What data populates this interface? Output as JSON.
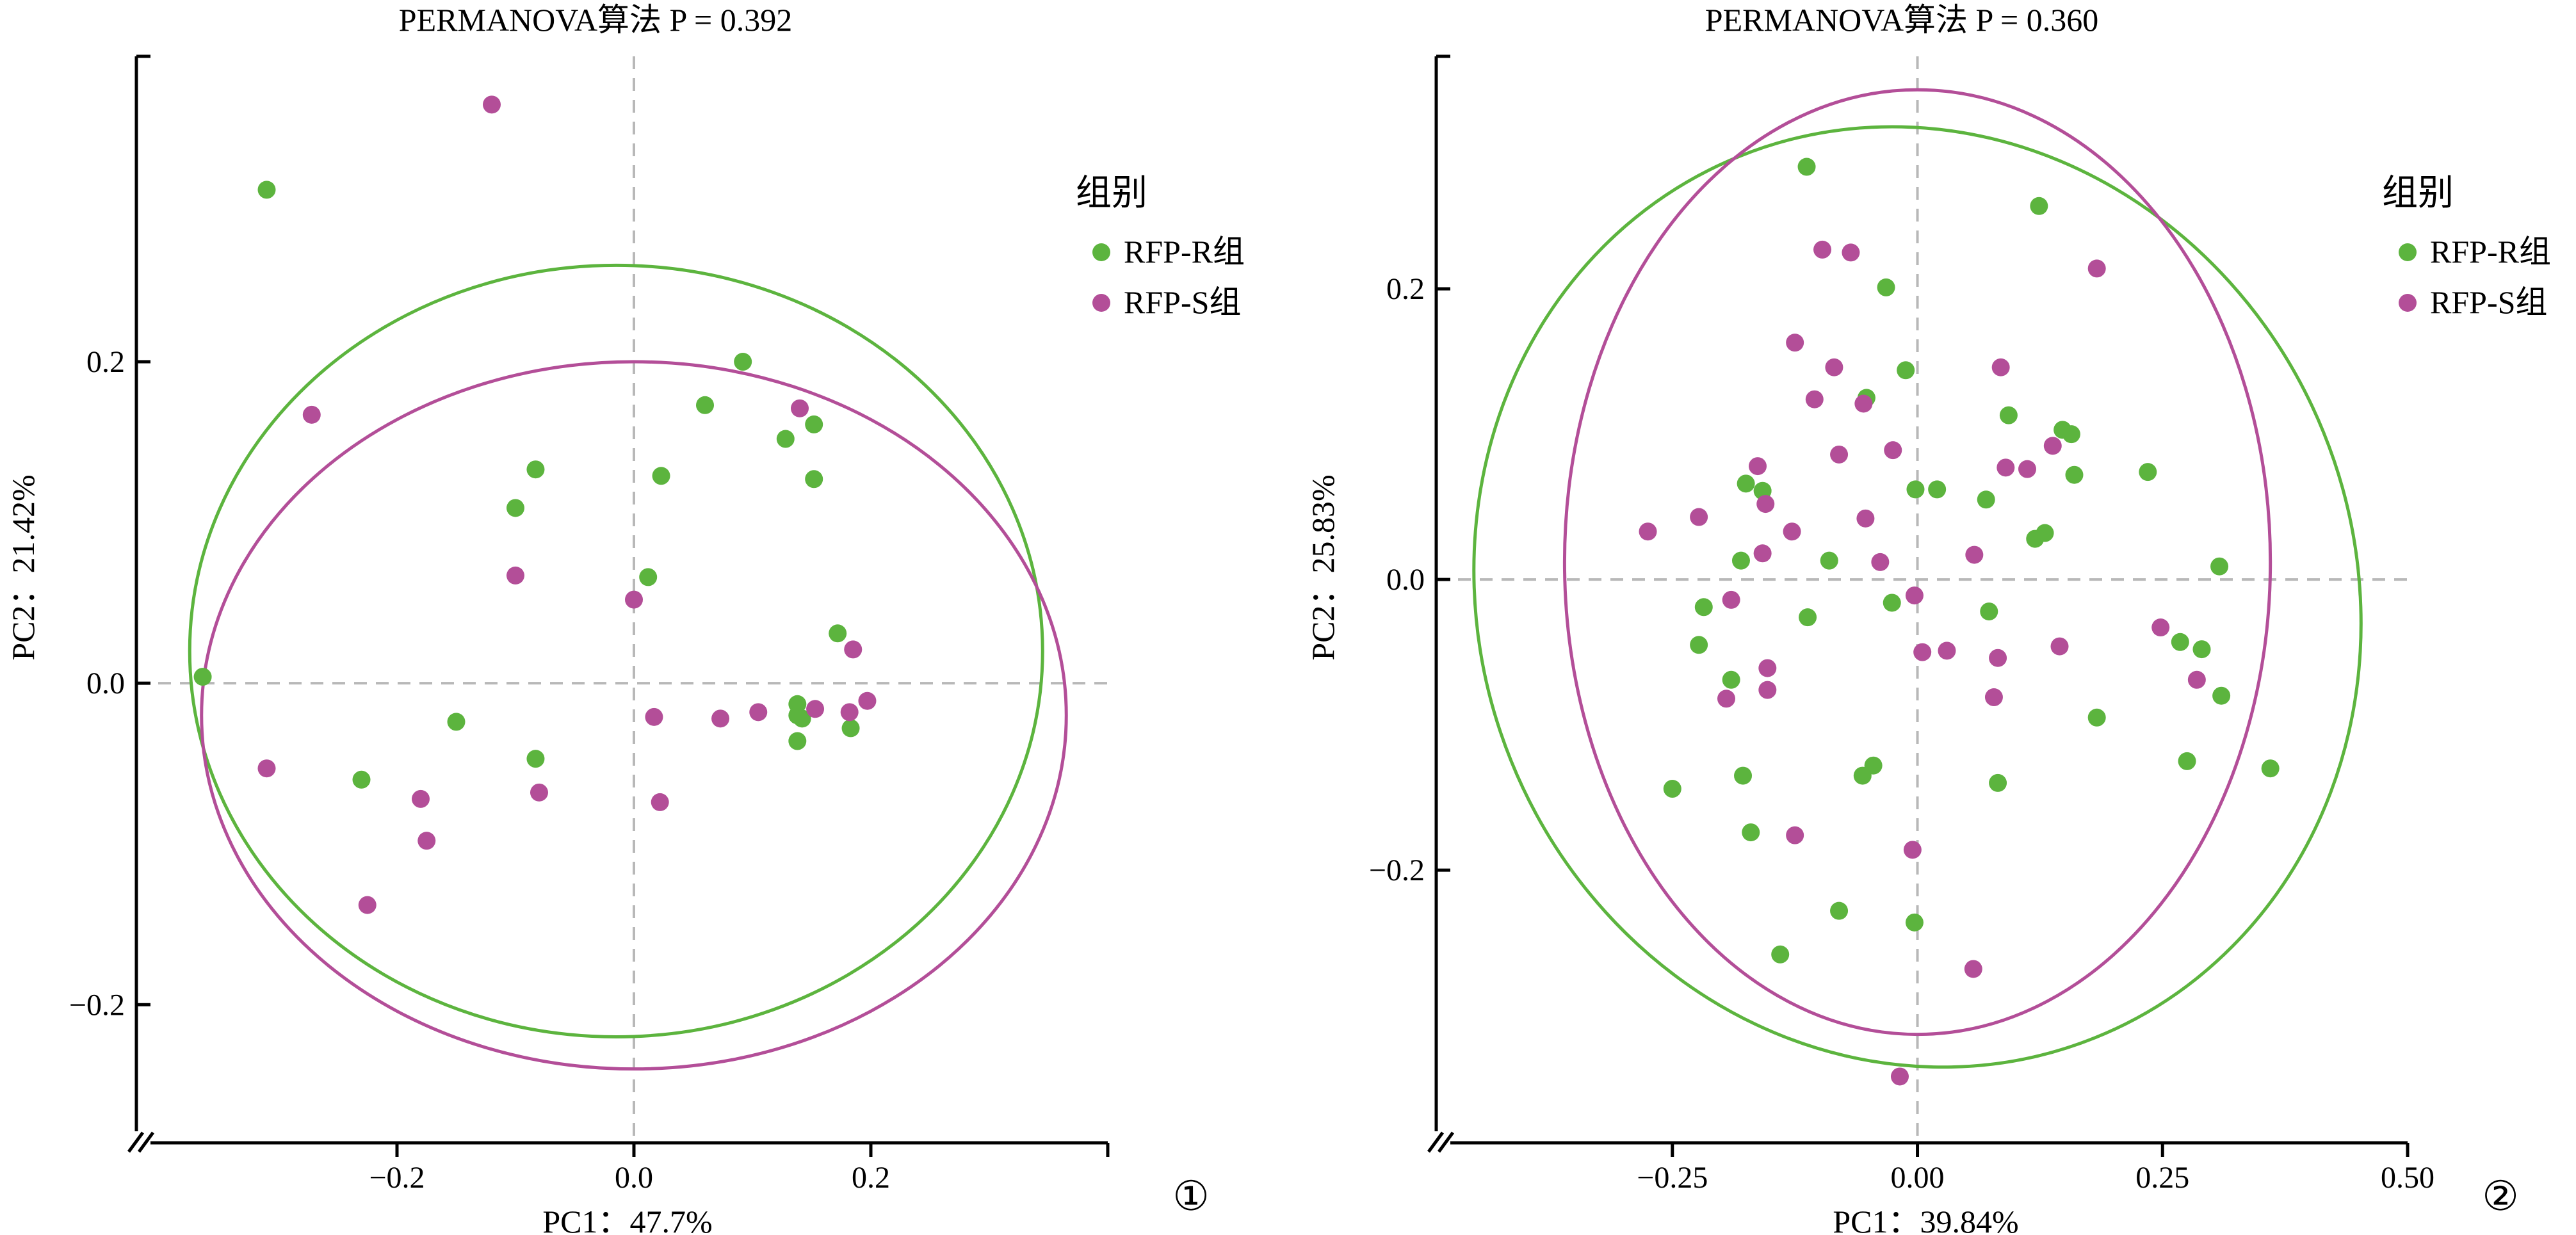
{
  "colors": {
    "group_r": "#5cb43e",
    "group_s": "#b34e98",
    "axis": "#000000",
    "refline": "#b8b8b8"
  },
  "chart_data": [
    {
      "type": "scatter",
      "title": "PERMANOVA算法  P = 0.392",
      "xlabel": "PC1：47.7%",
      "ylabel": "PC2：21.42%",
      "panel_label": "①",
      "xlim": [
        -0.4,
        0.4
      ],
      "ylim": [
        -0.27,
        0.39
      ],
      "xticks": [
        -0.2,
        0.0,
        0.2
      ],
      "xtick_labels": [
        "−0.2",
        "0.0",
        "0.2"
      ],
      "yticks": [
        -0.2,
        0.0,
        0.2
      ],
      "ytick_labels": [
        "−0.2",
        "0.0",
        "0.2"
      ],
      "reference_lines": {
        "x": 0,
        "y": 0
      },
      "legend": {
        "title": "组别",
        "placement": "right"
      },
      "series": [
        {
          "name": "RFP-R组",
          "color": "#5cb43e",
          "points": [
            [
              -0.364,
              0.004
            ],
            [
              -0.31,
              0.307
            ],
            [
              -0.23,
              -0.06
            ],
            [
              -0.15,
              -0.024
            ],
            [
              -0.1,
              0.109
            ],
            [
              -0.083,
              0.133
            ],
            [
              -0.083,
              -0.047
            ],
            [
              0.012,
              0.066
            ],
            [
              0.023,
              0.129
            ],
            [
              0.06,
              0.173
            ],
            [
              0.092,
              0.2
            ],
            [
              0.128,
              0.152
            ],
            [
              0.152,
              0.161
            ],
            [
              0.152,
              0.127
            ],
            [
              0.138,
              -0.013
            ],
            [
              0.138,
              -0.02
            ],
            [
              0.142,
              -0.022
            ],
            [
              0.138,
              -0.036
            ],
            [
              0.172,
              0.031
            ],
            [
              0.183,
              -0.028
            ]
          ]
        },
        {
          "name": "RFP-S组",
          "color": "#b34e98",
          "points": [
            [
              -0.12,
              0.36
            ],
            [
              -0.272,
              0.167
            ],
            [
              -0.31,
              -0.053
            ],
            [
              -0.18,
              -0.072
            ],
            [
              -0.175,
              -0.098
            ],
            [
              -0.225,
              -0.138
            ],
            [
              -0.1,
              0.067
            ],
            [
              -0.08,
              -0.068
            ],
            [
              0.0,
              0.052
            ],
            [
              0.017,
              -0.021
            ],
            [
              0.022,
              -0.074
            ],
            [
              0.073,
              -0.022
            ],
            [
              0.105,
              -0.018
            ],
            [
              0.14,
              0.171
            ],
            [
              0.153,
              -0.016
            ],
            [
              0.185,
              0.021
            ],
            [
              0.182,
              -0.018
            ],
            [
              0.197,
              -0.011
            ]
          ]
        }
      ],
      "ellipses": [
        {
          "series": "RFP-R组",
          "cx": -0.015,
          "cy": 0.02,
          "rx": 0.36,
          "ry": 0.24,
          "angle_deg": 0
        },
        {
          "series": "RFP-S组",
          "cx": 0.0,
          "cy": -0.02,
          "rx": 0.365,
          "ry": 0.22,
          "angle_deg": 0
        }
      ]
    },
    {
      "type": "scatter",
      "title": "PERMANOVA算法  P = 0.360",
      "xlabel": "PC1：39.84%",
      "ylabel": "PC2：25.83%",
      "panel_label": "②",
      "xlim": [
        -0.47,
        0.5
      ],
      "ylim": [
        -0.37,
        0.36
      ],
      "xticks": [
        -0.25,
        0.0,
        0.25,
        0.5
      ],
      "xtick_labels": [
        "−0.25",
        "0.00",
        "0.25",
        "0.50"
      ],
      "yticks": [
        -0.2,
        0.0,
        0.2
      ],
      "ytick_labels": [
        "−0.2",
        "0.0",
        "0.2"
      ],
      "reference_lines": {
        "x": 0,
        "y": 0
      },
      "legend": {
        "title": "组别",
        "placement": "right"
      },
      "series": [
        {
          "name": "RFP-R组",
          "color": "#5cb43e",
          "points": [
            [
              -0.113,
              0.284
            ],
            [
              -0.032,
              0.201
            ],
            [
              -0.012,
              0.144
            ],
            [
              -0.052,
              0.125
            ],
            [
              0.124,
              0.257
            ],
            [
              -0.175,
              0.066
            ],
            [
              -0.158,
              0.061
            ],
            [
              -0.002,
              0.062
            ],
            [
              0.02,
              0.062
            ],
            [
              0.07,
              0.055
            ],
            [
              0.093,
              0.113
            ],
            [
              0.148,
              0.103
            ],
            [
              0.157,
              0.1
            ],
            [
              0.16,
              0.072
            ],
            [
              0.235,
              0.074
            ],
            [
              0.12,
              0.028
            ],
            [
              0.13,
              0.032
            ],
            [
              -0.18,
              0.013
            ],
            [
              -0.09,
              0.013
            ],
            [
              0.308,
              0.009
            ],
            [
              -0.218,
              -0.019
            ],
            [
              -0.112,
              -0.026
            ],
            [
              -0.026,
              -0.016
            ],
            [
              0.073,
              -0.022
            ],
            [
              -0.223,
              -0.045
            ],
            [
              -0.19,
              -0.069
            ],
            [
              0.268,
              -0.043
            ],
            [
              0.29,
              -0.048
            ],
            [
              0.31,
              -0.08
            ],
            [
              0.183,
              -0.095
            ],
            [
              -0.178,
              -0.135
            ],
            [
              -0.045,
              -0.128
            ],
            [
              -0.056,
              -0.135
            ],
            [
              0.082,
              -0.14
            ],
            [
              0.275,
              -0.125
            ],
            [
              0.36,
              -0.13
            ],
            [
              -0.25,
              -0.144
            ],
            [
              -0.17,
              -0.174
            ],
            [
              -0.08,
              -0.228
            ],
            [
              -0.003,
              -0.236
            ],
            [
              -0.14,
              -0.258
            ]
          ]
        },
        {
          "name": "RFP-S组",
          "color": "#b34e98",
          "points": [
            [
              -0.097,
              0.227
            ],
            [
              -0.068,
              0.225
            ],
            [
              0.183,
              0.214
            ],
            [
              -0.125,
              0.163
            ],
            [
              -0.085,
              0.146
            ],
            [
              0.085,
              0.146
            ],
            [
              -0.105,
              0.124
            ],
            [
              -0.055,
              0.121
            ],
            [
              -0.163,
              0.078
            ],
            [
              -0.08,
              0.086
            ],
            [
              -0.025,
              0.089
            ],
            [
              0.09,
              0.077
            ],
            [
              0.112,
              0.076
            ],
            [
              0.138,
              0.092
            ],
            [
              -0.155,
              0.052
            ],
            [
              -0.128,
              0.033
            ],
            [
              -0.053,
              0.042
            ],
            [
              -0.275,
              0.033
            ],
            [
              -0.223,
              0.043
            ],
            [
              -0.158,
              0.018
            ],
            [
              -0.038,
              0.012
            ],
            [
              0.058,
              0.017
            ],
            [
              -0.19,
              -0.014
            ],
            [
              -0.003,
              -0.011
            ],
            [
              0.005,
              -0.05
            ],
            [
              0.03,
              -0.049
            ],
            [
              0.082,
              -0.054
            ],
            [
              0.145,
              -0.046
            ],
            [
              0.248,
              -0.033
            ],
            [
              -0.153,
              -0.061
            ],
            [
              -0.153,
              -0.076
            ],
            [
              -0.195,
              -0.082
            ],
            [
              0.078,
              -0.081
            ],
            [
              0.285,
              -0.069
            ],
            [
              -0.125,
              -0.176
            ],
            [
              -0.005,
              -0.186
            ],
            [
              0.057,
              -0.268
            ],
            [
              -0.018,
              -0.342
            ]
          ]
        }
      ],
      "ellipses": [
        {
          "series": "RFP-R组",
          "cx": 0.0,
          "cy": -0.012,
          "rx": 0.447,
          "ry": 0.327,
          "angle_deg": -22
        },
        {
          "series": "RFP-S组",
          "cx": 0.0,
          "cy": 0.012,
          "rx": 0.36,
          "ry": 0.325,
          "angle_deg": 0
        }
      ]
    }
  ]
}
